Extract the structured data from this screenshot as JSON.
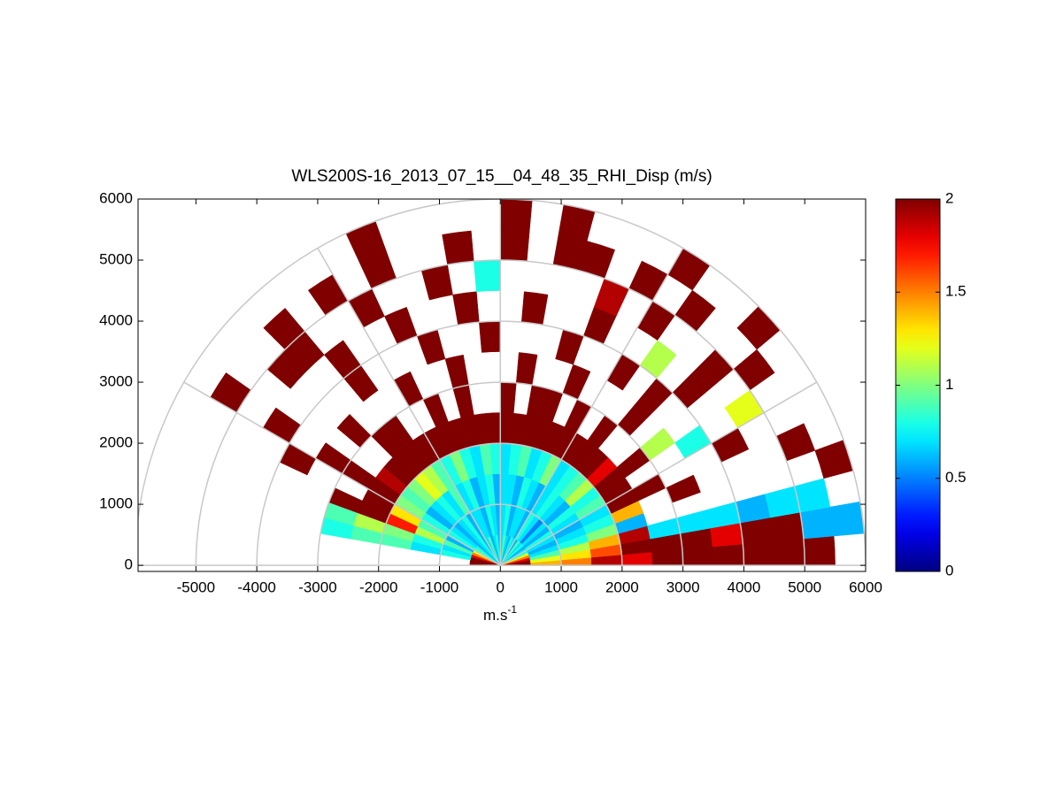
{
  "chart_data": {
    "type": "polar_heatmap",
    "title": "WLS200S-16_2013_07_15__04_48_35_RHI_Disp (m/s)",
    "xlabel": "m.s",
    "xlabel_sup": "-1",
    "xlim": [
      -5950,
      6000
    ],
    "ylim": [
      -100,
      6000
    ],
    "xticks": [
      -5000,
      -4000,
      -3000,
      -2000,
      -1000,
      0,
      1000,
      2000,
      3000,
      4000,
      5000,
      6000
    ],
    "yticks": [
      0,
      1000,
      2000,
      3000,
      4000,
      5000,
      6000
    ],
    "rings": [
      1000,
      2000,
      3000,
      4000,
      5000,
      6000
    ],
    "spokes": [
      0,
      30,
      60,
      90,
      120,
      150,
      180
    ],
    "clim": [
      0,
      2
    ],
    "cticks": [
      0,
      0.5,
      1,
      1.5,
      2
    ],
    "colormap": "jet",
    "r_edges": [
      0,
      500,
      1000,
      1500,
      2000,
      2500,
      3000,
      3500,
      4000,
      4500,
      5000,
      5500,
      6000
    ],
    "theta_edges": [
      0,
      5,
      10,
      15,
      20,
      25,
      30,
      35,
      40,
      45,
      50,
      55,
      60,
      65,
      70,
      75,
      80,
      85,
      90,
      95,
      100,
      105,
      110,
      115,
      120,
      125,
      130,
      135,
      140,
      145,
      150,
      155,
      160,
      165,
      170,
      175,
      180
    ],
    "values": [
      [
        2,
        2,
        1.8,
        1.5,
        1.2,
        0.8,
        0.7,
        0.6,
        0.8,
        0.7,
        0.9,
        0.6,
        0.7,
        0.8,
        0.6,
        0.7,
        0.9,
        0.7,
        0.6,
        0.8,
        0.7,
        0.6,
        0.9,
        0.7,
        0.6,
        0.8,
        0.7,
        0.6,
        0.8,
        0.9,
        1.2,
        1.5,
        1.8,
        2,
        2,
        2
      ],
      [
        1.4,
        1.2,
        0.9,
        0.7,
        0.6,
        0.7,
        0.8,
        0.6,
        0.7,
        0.5,
        0.7,
        0.8,
        0.6,
        0.7,
        0.7,
        0.6,
        0.8,
        0.7,
        0.6,
        0.7,
        0.8,
        0.6,
        0.7,
        0.7,
        0.6,
        0.8,
        0.7,
        0.6,
        0.7,
        0.8,
        0.6,
        0.9,
        0.7,
        0.8,
        null,
        null
      ],
      [
        1.5,
        1.3,
        1.1,
        0.8,
        0.7,
        0.6,
        0.7,
        0.8,
        0.6,
        0.7,
        0.8,
        0.7,
        0.6,
        0.7,
        0.8,
        0.6,
        0.7,
        0.7,
        0.6,
        0.8,
        0.7,
        0.6,
        0.8,
        0.7,
        0.9,
        0.7,
        0.8,
        0.7,
        0.6,
        0.8,
        0.9,
        1.1,
        0.8,
        0.7,
        null,
        null
      ],
      [
        1.9,
        1.6,
        1.4,
        1.0,
        0.8,
        0.7,
        0.9,
        0.8,
        1.1,
        0.9,
        0.8,
        0.7,
        1.0,
        0.8,
        0.7,
        0.9,
        0.8,
        0.7,
        0.8,
        0.9,
        0.7,
        0.8,
        1.0,
        0.8,
        0.9,
        1.1,
        1.2,
        1.0,
        0.9,
        1.0,
        1.3,
        1.7,
        1.0,
        0.9,
        null,
        null
      ],
      [
        1.8,
        2,
        1.9,
        0.6,
        1.4,
        2,
        2,
        2,
        1.8,
        2,
        2,
        2,
        2,
        2,
        2,
        2,
        2,
        2,
        2,
        2,
        2,
        2,
        2,
        2,
        2,
        2,
        2,
        2,
        1.9,
        2,
        2,
        2,
        1.1,
        0.9,
        null,
        null
      ],
      [
        2,
        2,
        0.7,
        null,
        null,
        2,
        null,
        2,
        null,
        null,
        2,
        null,
        2,
        null,
        2,
        2,
        null,
        2,
        null,
        null,
        2,
        null,
        2,
        null,
        null,
        2,
        2,
        null,
        null,
        2,
        null,
        2,
        0.9,
        0.8,
        null,
        null
      ],
      [
        2,
        2,
        0.7,
        null,
        2,
        null,
        null,
        1.1,
        null,
        2,
        null,
        null,
        null,
        2,
        null,
        null,
        2,
        null,
        null,
        null,
        2,
        null,
        null,
        2,
        null,
        null,
        null,
        2,
        null,
        2,
        null,
        null,
        null,
        null,
        null,
        null
      ],
      [
        2,
        1.8,
        0.7,
        null,
        null,
        null,
        0.8,
        null,
        null,
        2,
        null,
        2,
        null,
        null,
        2,
        null,
        null,
        null,
        2,
        null,
        null,
        2,
        null,
        null,
        null,
        2,
        null,
        null,
        null,
        null,
        2,
        null,
        null,
        null,
        null,
        null
      ],
      [
        2,
        2,
        0.6,
        null,
        null,
        2,
        null,
        null,
        2,
        null,
        1.1,
        null,
        null,
        2,
        null,
        null,
        2,
        null,
        null,
        2,
        null,
        null,
        2,
        null,
        null,
        2,
        null,
        null,
        null,
        2,
        null,
        null,
        null,
        null,
        null,
        null
      ],
      [
        2,
        2,
        0.7,
        null,
        null,
        null,
        1.2,
        null,
        2,
        null,
        null,
        2,
        null,
        1.9,
        null,
        null,
        null,
        null,
        0.8,
        null,
        2,
        null,
        null,
        2,
        null,
        null,
        2,
        2,
        null,
        null,
        null,
        null,
        null,
        null,
        null,
        null
      ],
      [
        2,
        0.6,
        0.7,
        null,
        2,
        null,
        null,
        2,
        null,
        null,
        2,
        null,
        2,
        null,
        2,
        2,
        null,
        2,
        null,
        2,
        null,
        null,
        2,
        null,
        2,
        null,
        2,
        null,
        null,
        2,
        null,
        null,
        null,
        null,
        null,
        null
      ],
      [
        null,
        0.6,
        null,
        2,
        null,
        null,
        null,
        null,
        2,
        null,
        null,
        2,
        null,
        null,
        null,
        2,
        null,
        2,
        null,
        null,
        null,
        null,
        2,
        null,
        null,
        null,
        null,
        null,
        null,
        null,
        null,
        null,
        null,
        null,
        null,
        null
      ]
    ]
  }
}
